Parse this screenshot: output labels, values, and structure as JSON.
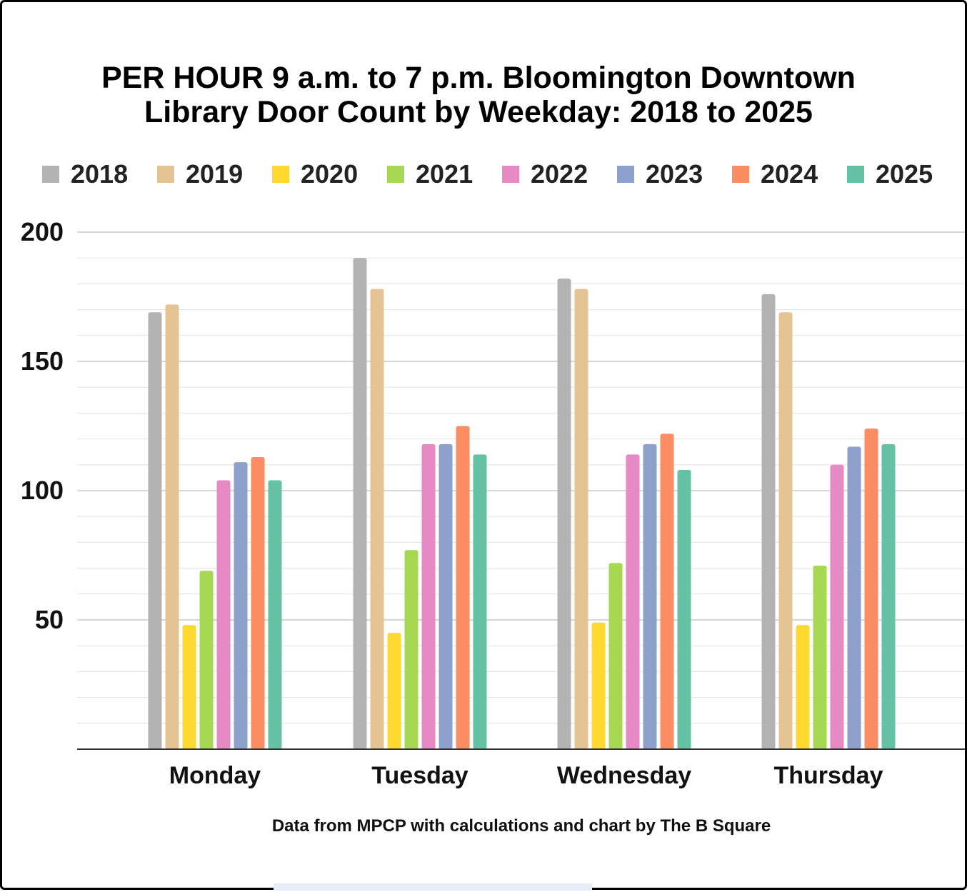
{
  "chart_data": {
    "type": "bar",
    "title_lines": [
      "PER HOUR 9 a.m. to 7 p.m. Bloomington Downtown",
      "Library Door Count by Weekday: 2018 to 2025"
    ],
    "categories": [
      "Monday",
      "Tuesday",
      "Wednesday",
      "Thursday"
    ],
    "series": [
      {
        "name": "2018",
        "color": "#b3b3b3",
        "values": [
          169,
          190,
          182,
          176
        ]
      },
      {
        "name": "2019",
        "color": "#e5c494",
        "values": [
          172,
          178,
          178,
          169
        ]
      },
      {
        "name": "2020",
        "color": "#ffd92f",
        "values": [
          48,
          45,
          49,
          48
        ]
      },
      {
        "name": "2021",
        "color": "#a6d854",
        "values": [
          69,
          77,
          72,
          71
        ]
      },
      {
        "name": "2022",
        "color": "#e78ac3",
        "values": [
          104,
          118,
          114,
          110
        ]
      },
      {
        "name": "2023",
        "color": "#8da0cb",
        "values": [
          111,
          118,
          118,
          117
        ]
      },
      {
        "name": "2024",
        "color": "#fc8d62",
        "values": [
          113,
          125,
          122,
          124
        ]
      },
      {
        "name": "2025",
        "color": "#66c2a5",
        "values": [
          104,
          114,
          108,
          118
        ]
      }
    ],
    "ylim": [
      0,
      200
    ],
    "yticks": [
      "50",
      "100",
      "150",
      "200"
    ],
    "major_grid_step": 50,
    "minor_grid_step": 10,
    "legend_position": "top",
    "source_note": "Data from MPCP with calculations and chart by The B Square"
  }
}
